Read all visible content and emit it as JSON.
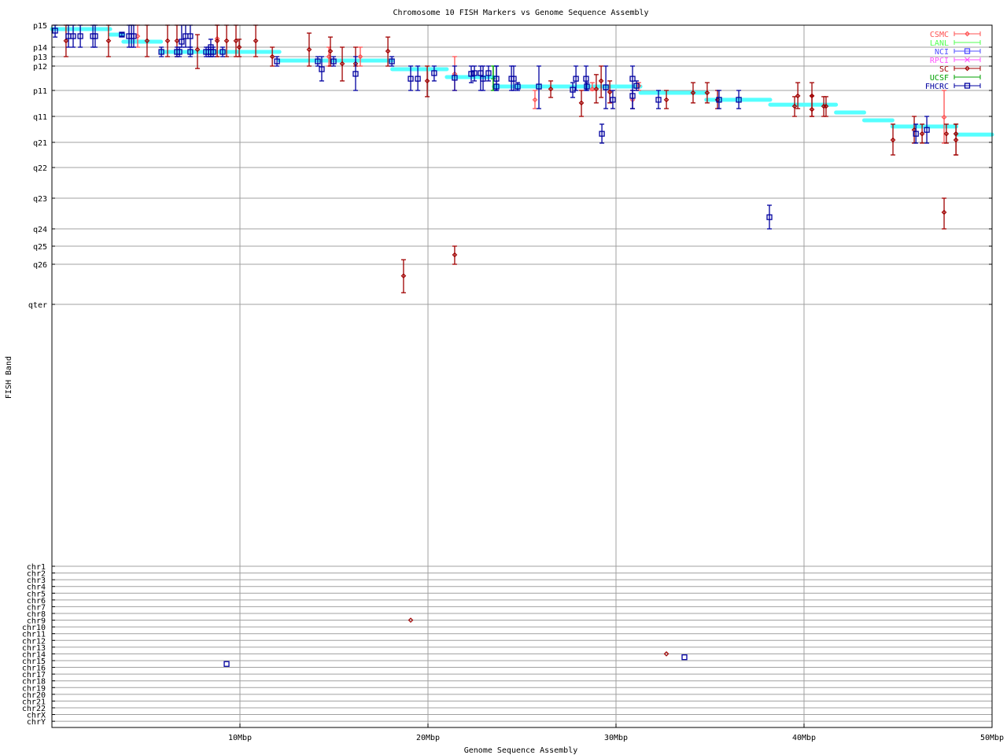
{
  "chart_data": {
    "type": "scatter",
    "title": "Chromosome 10 FISH Markers vs Genome Sequence Assembly",
    "xlabel": "Genome Sequence Assembly",
    "ylabel": "FISH Band",
    "xlim": [
      0,
      50
    ],
    "x_ticks": [
      {
        "value": 10,
        "label": "10Mbp"
      },
      {
        "value": 20,
        "label": "20Mbp"
      },
      {
        "value": 30,
        "label": "30Mbp"
      },
      {
        "value": 40,
        "label": "40Mbp"
      },
      {
        "value": 50,
        "label": "50Mbp"
      }
    ],
    "y_bands": [
      "p15",
      "p14",
      "p13",
      "p12",
      "p11",
      "q11",
      "q21",
      "q22",
      "q23",
      "q24",
      "q25",
      "q26",
      "qter"
    ],
    "y_chromosomes": [
      "chr1",
      "chr2",
      "chr3",
      "chr4",
      "chr5",
      "chr6",
      "chr7",
      "chr8",
      "chr9",
      "chr10",
      "chr11",
      "chr12",
      "chr13",
      "chr14",
      "chr15",
      "chr16",
      "chr17",
      "chr18",
      "chr19",
      "chr20",
      "chr21",
      "chr22",
      "chrX",
      "chrY"
    ],
    "y_note_units": "band index along y_bands (0 = p15 … 12 = qter), fractional between bands",
    "grid": true,
    "legend_position": "top-right",
    "assembly": {
      "color": "#55ffff",
      "segments": [
        [
          0,
          3.1,
          0.18
        ],
        [
          3.1,
          3.8,
          0.43
        ],
        [
          3.8,
          5.8,
          0.75
        ],
        [
          5.8,
          12.1,
          1.5
        ],
        [
          12.1,
          18.1,
          2.42
        ],
        [
          18.1,
          21.0,
          3.13
        ],
        [
          21.0,
          23.5,
          3.45
        ],
        [
          23.5,
          31.3,
          3.84
        ],
        [
          31.3,
          34.8,
          4.09
        ],
        [
          34.8,
          38.2,
          4.36
        ],
        [
          38.2,
          41.7,
          4.55
        ],
        [
          41.7,
          43.2,
          4.85
        ],
        [
          43.2,
          44.7,
          5.15
        ],
        [
          44.7,
          48.1,
          5.39
        ],
        [
          48.1,
          50,
          5.7
        ]
      ]
    },
    "series": [
      {
        "name": "CSMC",
        "color": "#ff5050",
        "marker": "diamond",
        "points": [
          [
            4.56,
            0.5,
            0,
            1
          ],
          [
            8.79,
            0.61,
            0,
            2
          ],
          [
            14.73,
            2,
            1,
            3
          ],
          [
            16.4,
            2,
            1,
            3
          ],
          [
            21.42,
            3.32,
            2,
            4
          ],
          [
            25.69,
            4.36,
            4,
            4.7
          ],
          [
            28.74,
            3.94,
            3.68,
            4
          ],
          [
            30.88,
            4.36,
            4,
            4.7
          ],
          [
            31.21,
            3.81,
            3.68,
            4
          ],
          [
            47.45,
            5.03,
            4,
            6.03
          ]
        ],
        "other_chr": []
      },
      {
        "name": "LANL",
        "color": "#50ff50",
        "marker": "tick",
        "points": [],
        "other_chr": []
      },
      {
        "name": "NCI",
        "color": "#5050ff",
        "marker": "box",
        "points": [],
        "other_chr": []
      },
      {
        "name": "RPCI",
        "color": "#ff50ff",
        "marker": "cross",
        "points": [],
        "other_chr": []
      },
      {
        "name": "SC",
        "color": "#a00000",
        "marker": "diamond",
        "points": [
          [
            0.75,
            0.71,
            0,
            2
          ],
          [
            3.01,
            0.71,
            0,
            2
          ],
          [
            5.06,
            0.71,
            0,
            2
          ],
          [
            6.15,
            0.71,
            0,
            2
          ],
          [
            6.65,
            0.71,
            0,
            2
          ],
          [
            7.74,
            1.25,
            0.43,
            3.1
          ],
          [
            8.79,
            0.71,
            0,
            2
          ],
          [
            9.29,
            0.71,
            0,
            2
          ],
          [
            9.79,
            0.71,
            0,
            2
          ],
          [
            9.96,
            1,
            0.64,
            2
          ],
          [
            10.84,
            0.71,
            0,
            2
          ],
          [
            11.72,
            2,
            1,
            3
          ],
          [
            13.68,
            1.25,
            0.36,
            3
          ],
          [
            14.81,
            1.42,
            0.54,
            3
          ],
          [
            15.44,
            2.75,
            1,
            3.61
          ],
          [
            16.15,
            2.75,
            1,
            3
          ],
          [
            17.87,
            1.42,
            0.54,
            3
          ],
          [
            18.7,
            11.29,
            10.75,
            11.71
          ],
          [
            19.96,
            3.61,
            3,
            4.24
          ],
          [
            21.42,
            10.48,
            10,
            11
          ],
          [
            26.53,
            3.94,
            3.61,
            4.27
          ],
          [
            28.16,
            4.48,
            4,
            5
          ],
          [
            28.95,
            3.94,
            3.35,
            4.48
          ],
          [
            29.21,
            3.61,
            3,
            4.27
          ],
          [
            29.67,
            4.06,
            3.61,
            4.48
          ],
          [
            32.68,
            4.36,
            4,
            4.7
          ],
          [
            34.1,
            4.09,
            3.68,
            4.48
          ],
          [
            34.85,
            4.09,
            3.68,
            4.48
          ],
          [
            35.4,
            4.36,
            4,
            4.7
          ],
          [
            39.5,
            4.61,
            4.24,
            5
          ],
          [
            39.67,
            4.21,
            3.68,
            4.7
          ],
          [
            40.42,
            4.21,
            3.68,
            5
          ],
          [
            40.42,
            4.73,
            4.21,
            5
          ],
          [
            41.05,
            4.61,
            4.24,
            5
          ],
          [
            41.17,
            4.61,
            4.24,
            5
          ],
          [
            44.73,
            5.91,
            5.3,
            6.5
          ],
          [
            45.86,
            5.52,
            5,
            6.03
          ],
          [
            46.28,
            5.67,
            5.3,
            6.03
          ],
          [
            47.45,
            8.46,
            8,
            9
          ],
          [
            47.57,
            5.67,
            5.3,
            6.03
          ],
          [
            48.08,
            5.67,
            5.3,
            6.5
          ],
          [
            48.08,
            5.91,
            5.3,
            6.5
          ]
        ],
        "other_chr": [
          {
            "x": 19.08,
            "chr": "chr9",
            "offset": 0
          },
          {
            "x": 32.68,
            "chr": "chr14",
            "offset": 0
          }
        ]
      },
      {
        "name": "UCSF",
        "color": "#00a000",
        "marker": "tick",
        "points": [
          [
            23.47,
            3.52,
            3,
            4
          ]
        ],
        "other_chr": []
      },
      {
        "name": "FHCRC",
        "color": "#0000a0",
        "marker": "box",
        "points": [
          [
            0.17,
            0.25,
            0,
            0.54
          ],
          [
            0.88,
            0.5,
            0,
            1
          ],
          [
            1.13,
            0.5,
            0,
            1
          ],
          [
            1.51,
            0.5,
            0,
            1
          ],
          [
            2.18,
            0.5,
            0,
            1
          ],
          [
            2.3,
            0.5,
            0,
            1
          ],
          [
            3.72,
            0.43,
            0.36,
            0.5
          ],
          [
            4.1,
            0.5,
            0,
            1
          ],
          [
            4.23,
            0.5,
            0,
            1
          ],
          [
            4.35,
            0.5,
            0,
            1
          ],
          [
            5.82,
            1.5,
            1,
            2
          ],
          [
            6.65,
            1.5,
            1,
            2
          ],
          [
            6.78,
            1.5,
            1,
            2
          ],
          [
            6.9,
            0.75,
            0,
            1
          ],
          [
            7.11,
            0.5,
            0,
            1
          ],
          [
            7.36,
            0.5,
            0,
            1
          ],
          [
            7.36,
            1.5,
            1,
            2
          ],
          [
            8.2,
            1.5,
            1,
            2
          ],
          [
            8.33,
            1.5,
            1,
            2
          ],
          [
            8.45,
            1,
            0.64,
            2
          ],
          [
            8.45,
            1.5,
            1,
            2
          ],
          [
            8.58,
            1.5,
            1,
            2
          ],
          [
            9.08,
            1.5,
            1,
            2
          ],
          [
            11.97,
            2.5,
            2,
            3
          ],
          [
            14.14,
            2.5,
            2,
            3
          ],
          [
            14.35,
            3.13,
            2,
            3.61
          ],
          [
            14.98,
            2.5,
            2,
            3
          ],
          [
            16.15,
            3.32,
            2,
            4
          ],
          [
            18.08,
            2.5,
            2,
            3
          ],
          [
            19.08,
            3.52,
            3,
            4
          ],
          [
            19.46,
            3.52,
            3,
            4
          ],
          [
            20.33,
            3.29,
            3,
            3.61
          ],
          [
            21.42,
            3.48,
            3,
            4
          ],
          [
            22.3,
            3.32,
            3,
            3.68
          ],
          [
            22.47,
            3.29,
            3,
            3.61
          ],
          [
            22.8,
            3.29,
            3,
            4
          ],
          [
            22.93,
            3.52,
            3,
            4
          ],
          [
            23.22,
            3.29,
            3,
            3.61
          ],
          [
            23.64,
            3.52,
            3,
            4
          ],
          [
            23.64,
            3.84,
            3,
            4
          ],
          [
            24.44,
            3.52,
            3,
            4
          ],
          [
            24.56,
            3.52,
            3,
            4
          ],
          [
            24.77,
            3.84,
            3.68,
            4
          ],
          [
            25.9,
            3.84,
            3,
            4.7
          ],
          [
            27.7,
            3.97,
            3.68,
            4.27
          ],
          [
            27.87,
            3.52,
            3,
            4
          ],
          [
            28.41,
            3.52,
            3,
            4
          ],
          [
            28.45,
            3.84,
            3.68,
            4
          ],
          [
            29.25,
            5.67,
            5.3,
            6.03
          ],
          [
            29.46,
            3.87,
            3,
            4.7
          ],
          [
            29.83,
            4.36,
            4,
            4.7
          ],
          [
            30.88,
            3.52,
            3,
            4.7
          ],
          [
            30.88,
            4.21,
            4,
            4.7
          ],
          [
            31.09,
            3.81,
            3.61,
            4
          ],
          [
            32.26,
            4.36,
            4,
            4.7
          ],
          [
            35.48,
            4.36,
            4,
            4.7
          ],
          [
            36.53,
            4.36,
            4,
            4.7
          ],
          [
            38.16,
            8.62,
            8.23,
            9
          ],
          [
            45.95,
            5.67,
            5.3,
            6.03
          ],
          [
            46.53,
            5.52,
            5,
            6.03
          ]
        ],
        "other_chr": [
          {
            "x": 9.29,
            "chr": "chr15",
            "offset": 0.5
          },
          {
            "x": 33.64,
            "chr": "chr14",
            "offset": 0.5
          }
        ]
      }
    ]
  }
}
